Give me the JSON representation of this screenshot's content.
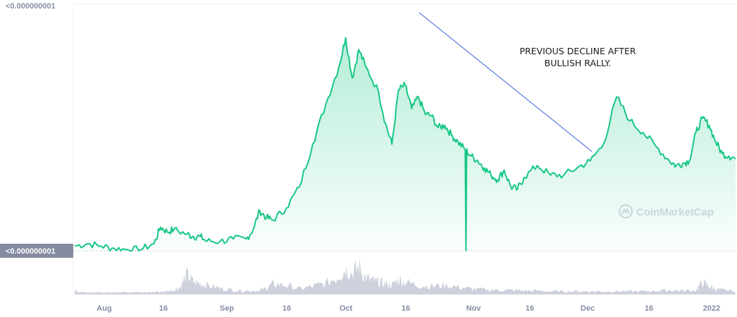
{
  "chart_data": {
    "type": "area",
    "y_axis": {
      "top_label": "<0.000000001",
      "current_price_label": "<0.000000001"
    },
    "x_ticks": [
      "Aug",
      "16",
      "Sep",
      "16",
      "Oct",
      "16",
      "Nov",
      "16",
      "Dec",
      "16",
      "2022"
    ],
    "annotation": {
      "lines": [
        "PREVIOUS DECLINE AFTER",
        "BULLISH RALLY."
      ]
    },
    "watermark": "CoinMarketCap",
    "colors": {
      "line": "#16c784",
      "volume": "#c8ccd8",
      "trendline": "#3a5bd9"
    },
    "price": {
      "x_domain": [
        0,
        100
      ],
      "y_domain": [
        0,
        100
      ],
      "x": [
        0,
        2,
        4,
        6,
        8,
        10,
        12,
        13,
        14,
        15,
        17,
        18,
        19,
        20,
        22,
        24,
        26,
        27,
        28,
        29,
        30,
        32,
        34,
        36,
        38,
        40,
        41,
        42,
        43,
        44,
        46,
        47,
        48,
        49,
        50,
        51,
        52,
        53,
        54,
        55,
        56,
        57,
        58,
        59,
        60,
        61,
        62,
        63,
        64,
        65,
        66,
        67,
        68,
        70,
        72,
        74,
        76,
        78,
        80,
        82,
        84,
        86,
        88,
        90,
        91,
        92,
        93,
        94,
        95,
        96,
        97,
        98,
        99,
        100
      ],
      "y": [
        2,
        3,
        2,
        1,
        0.5,
        0.5,
        3,
        10,
        8,
        9,
        7,
        6,
        6,
        4,
        4,
        5,
        5,
        9,
        17,
        14,
        13,
        18,
        27,
        45,
        62,
        78,
        90,
        73,
        85,
        78,
        67,
        54,
        45,
        68,
        70,
        60,
        65,
        58,
        57,
        52,
        53,
        49,
        46,
        43,
        40,
        38,
        35,
        32,
        30,
        34,
        27,
        26,
        31,
        36,
        32,
        32,
        35,
        38,
        45,
        65,
        55,
        50,
        44,
        38,
        36,
        37,
        38,
        50,
        56,
        53,
        46,
        41,
        40,
        39
      ],
      "dip": {
        "x": 59.2,
        "y": 0
      }
    },
    "volume": {
      "x_domain": [
        0,
        100
      ],
      "y_domain": [
        0,
        100
      ],
      "x": [
        0,
        5,
        10,
        12,
        14,
        15,
        16,
        17,
        18,
        19,
        20,
        22,
        24,
        26,
        28,
        29,
        30,
        32,
        34,
        36,
        38,
        40,
        41,
        42,
        43,
        44,
        45,
        46,
        47,
        48,
        49,
        50,
        52,
        54,
        56,
        58,
        60,
        62,
        64,
        66,
        68,
        70,
        72,
        74,
        76,
        78,
        80,
        82,
        84,
        86,
        88,
        90,
        92,
        94,
        95,
        96,
        97,
        98,
        100
      ],
      "y": [
        10,
        8,
        6,
        8,
        10,
        15,
        25,
        65,
        40,
        35,
        30,
        20,
        14,
        12,
        14,
        20,
        35,
        30,
        18,
        26,
        35,
        60,
        85,
        70,
        90,
        55,
        45,
        40,
        35,
        30,
        50,
        40,
        30,
        26,
        30,
        24,
        18,
        16,
        14,
        14,
        12,
        12,
        10,
        10,
        10,
        10,
        10,
        10,
        10,
        10,
        12,
        14,
        12,
        14,
        40,
        25,
        18,
        14,
        12
      ]
    }
  }
}
